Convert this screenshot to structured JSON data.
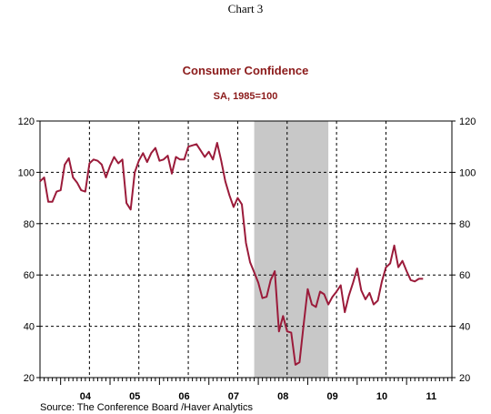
{
  "chart_data": {
    "type": "line",
    "header": "Chart 3",
    "title": "Consumer Confidence",
    "subtitle": "SA, 1985=100",
    "source": "Source:  The Conference Board /Haver Analytics",
    "xlabel": "",
    "ylabel": "",
    "xlim": [
      2003.583,
      2011.917
    ],
    "ylim": [
      20,
      120
    ],
    "y_ticks": [
      20,
      40,
      60,
      80,
      100,
      120
    ],
    "y_tick_labels": [
      "20",
      "40",
      "60",
      "80",
      "100",
      "120"
    ],
    "x_tick_labels": [
      {
        "label": "04",
        "year": 2004
      },
      {
        "label": "05",
        "year": 2005
      },
      {
        "label": "06",
        "year": 2006
      },
      {
        "label": "07",
        "year": 2007
      },
      {
        "label": "08",
        "year": 2008
      },
      {
        "label": "09",
        "year": 2009
      },
      {
        "label": "10",
        "year": 2010
      },
      {
        "label": "11",
        "year": 2011
      }
    ],
    "x_gridlines": [
      2004.583,
      2005.583,
      2006.583,
      2007.583,
      2008.583,
      2009.583,
      2010.583
    ],
    "y_gridlines": [
      40,
      60,
      80,
      100
    ],
    "grid": "dashed",
    "recession_shading": {
      "start": 2007.917,
      "end": 2009.417,
      "color": "#c8c8c8"
    },
    "colors": {
      "line": "#9b1b3a",
      "title": "#8b1a1a",
      "text": "#000000"
    },
    "series": [
      {
        "name": "",
        "x": [
          2003.583,
          2003.667,
          2003.75,
          2003.833,
          2003.917,
          2004.0,
          2004.083,
          2004.167,
          2004.25,
          2004.333,
          2004.417,
          2004.5,
          2004.583,
          2004.667,
          2004.75,
          2004.833,
          2004.917,
          2005.0,
          2005.083,
          2005.167,
          2005.25,
          2005.333,
          2005.417,
          2005.5,
          2005.583,
          2005.667,
          2005.75,
          2005.833,
          2005.917,
          2006.0,
          2006.083,
          2006.167,
          2006.25,
          2006.333,
          2006.417,
          2006.5,
          2006.583,
          2006.667,
          2006.75,
          2006.833,
          2006.917,
          2007.0,
          2007.083,
          2007.167,
          2007.25,
          2007.333,
          2007.417,
          2007.5,
          2007.583,
          2007.667,
          2007.75,
          2007.833,
          2007.917,
          2008.0,
          2008.083,
          2008.167,
          2008.25,
          2008.333,
          2008.417,
          2008.5,
          2008.583,
          2008.667,
          2008.75,
          2008.833,
          2008.917,
          2009.0,
          2009.083,
          2009.167,
          2009.25,
          2009.333,
          2009.417,
          2009.5,
          2009.583,
          2009.667,
          2009.75,
          2009.833,
          2009.917,
          2010.0,
          2010.083,
          2010.167,
          2010.25,
          2010.333,
          2010.417,
          2010.5,
          2010.583,
          2010.667,
          2010.75,
          2010.833,
          2010.917,
          2011.0,
          2011.083,
          2011.167,
          2011.25,
          2011.333
        ],
        "values": [
          96.5,
          98,
          88.5,
          88.5,
          92.5,
          93,
          103,
          105.5,
          98,
          96,
          93,
          92.5,
          103.5,
          105,
          104.5,
          103,
          98,
          102.5,
          106,
          103.5,
          105,
          88,
          85.5,
          100,
          104.5,
          107.5,
          104,
          107.5,
          109.5,
          104.5,
          105,
          106.5,
          99.5,
          106,
          105,
          105,
          110,
          110.5,
          111,
          108.5,
          106,
          108,
          105,
          111.5,
          104.5,
          96.5,
          91,
          86.5,
          90,
          87.5,
          72.5,
          65,
          61,
          57,
          51,
          51.5,
          58,
          61.5,
          38,
          44,
          38,
          37.5,
          25,
          26,
          40.5,
          54.5,
          48.5,
          47.5,
          53.5,
          52.5,
          48.5,
          51.5,
          53.5,
          56,
          45.5,
          52,
          57,
          62.5,
          54,
          50.5,
          53,
          48.5,
          50,
          57.5,
          63,
          64.5,
          71.5,
          63,
          65.5,
          61.5,
          58,
          57.5,
          58.5,
          58.5
        ]
      }
    ]
  }
}
